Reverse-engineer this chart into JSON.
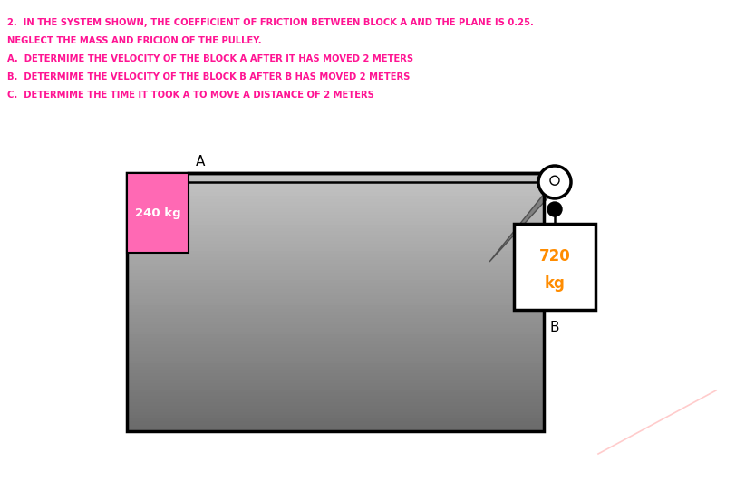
{
  "title_lines": [
    "2.  IN THE SYSTEM SHOWN, THE COEFFICIENT OF FRICTION BETWEEN BLOCK A AND THE PLANE IS 0.25.",
    "NEGLECT THE MASS AND FRICION OF THE PULLEY.",
    "A.  DETERMIME THE VELOCITY OF THE BLOCK A AFTER IT HAS MOVED 2 METERS",
    "B.  DETERMIME THE VELOCITY OF THE BLOCK B AFTER B HAS MOVED 2 METERS",
    "C.  DETERMIME THE TIME IT TOOK A TO MOVE A DISTANCE OF 2 METERS"
  ],
  "text_color": "#FF1493",
  "bg_color": "#FFFFFF",
  "block_a_color": "#FF69B4",
  "block_a_text": "240 kg",
  "block_b_text_line1": "720",
  "block_b_text_line2": "kg",
  "label_a": "A",
  "label_b": "B",
  "block_b_text_color": "#FF8C00"
}
